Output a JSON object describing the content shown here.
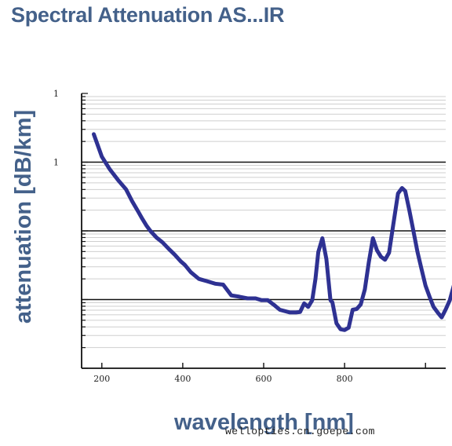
{
  "title": "Spectral Attenuation AS...IR",
  "watermark": "wellopties.cn.goepe.com",
  "chart_data": {
    "type": "line",
    "title": "Spectral Attenuation AS...IR",
    "xlabel": "wavelength [nm]",
    "ylabel": "attenuation [dB/km]",
    "xlim": [
      150,
      1050
    ],
    "y_scale": "log",
    "ylim_decades": [
      0.001,
      10
    ],
    "x_ticks": [
      200,
      400,
      600,
      800
    ],
    "y_tick_labels": [
      "1",
      "1"
    ],
    "grid": true,
    "colors": {
      "line": "#2e3192",
      "text": "#44618a"
    },
    "series": [
      {
        "x": [
          180,
          200,
          220,
          240,
          260,
          275,
          290,
          300,
          310,
          320,
          335,
          350,
          365,
          380,
          395,
          405,
          420,
          440,
          460,
          480,
          500,
          520,
          540,
          560,
          580,
          595,
          610,
          625,
          640,
          665,
          680,
          690,
          700,
          710,
          720,
          728,
          735,
          745,
          755,
          765,
          770,
          780,
          790,
          800,
          810,
          820,
          830,
          840,
          850,
          860,
          870,
          880,
          890,
          900,
          910,
          920,
          932,
          942,
          950,
          960,
          970,
          980,
          990,
          1000,
          1010,
          1020,
          1030,
          1040,
          1050,
          1060,
          1070
        ],
        "y": [
          2.55,
          1.2,
          0.78,
          0.55,
          0.4,
          0.27,
          0.19,
          0.15,
          0.12,
          0.1,
          0.08,
          0.068,
          0.055,
          0.045,
          0.036,
          0.032,
          0.025,
          0.02,
          0.0185,
          0.017,
          0.0165,
          0.0115,
          0.011,
          0.0104,
          0.0104,
          0.0098,
          0.0098,
          0.0084,
          0.0071,
          0.0065,
          0.0065,
          0.0066,
          0.0088,
          0.0078,
          0.0098,
          0.02,
          0.049,
          0.078,
          0.039,
          0.0098,
          0.0091,
          0.0045,
          0.0037,
          0.0036,
          0.0039,
          0.0071,
          0.0073,
          0.0085,
          0.014,
          0.035,
          0.078,
          0.052,
          0.042,
          0.038,
          0.048,
          0.12,
          0.35,
          0.42,
          0.38,
          0.2,
          0.1,
          0.05,
          0.028,
          0.016,
          0.011,
          0.0078,
          0.0065,
          0.0055,
          0.0072,
          0.0098,
          0.016
        ]
      }
    ]
  }
}
